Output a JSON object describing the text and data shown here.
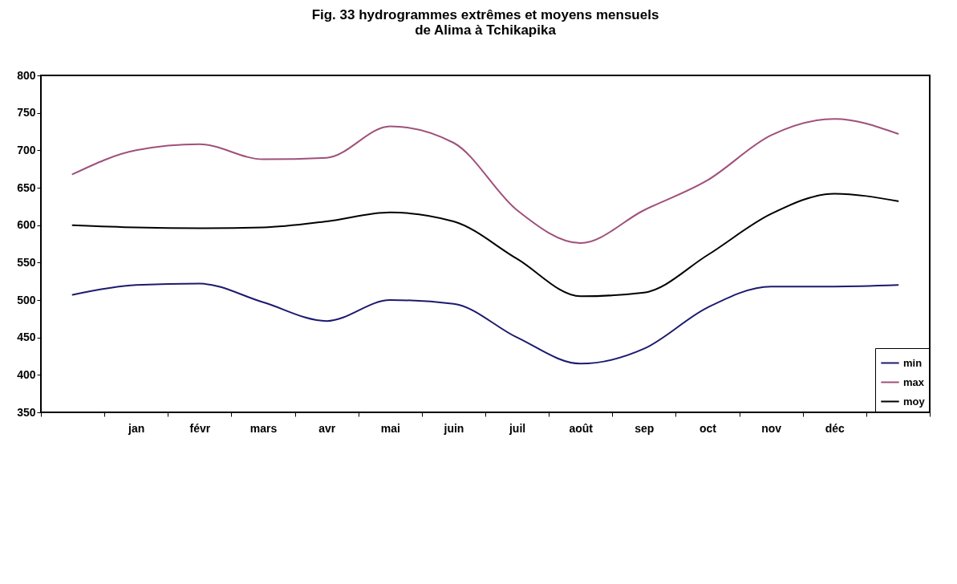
{
  "chart_data": {
    "type": "line",
    "title": "Fig. 33 hydrogrammes extrêmes et moyens mensuels\nde Alima à Tchikapika",
    "categories": [
      null,
      "jan",
      "févr",
      "mars",
      "avr",
      "mai",
      "juin",
      "juil",
      "août",
      "sep",
      "oct",
      "nov",
      "déc",
      null
    ],
    "series": [
      {
        "name": "min",
        "color": "#1c1a6e",
        "values": [
          507,
          520,
          522,
          497,
          472,
          500,
          495,
          450,
          415,
          435,
          490,
          518,
          518,
          520
        ]
      },
      {
        "name": "max",
        "color": "#a0507a",
        "values": [
          668,
          700,
          708,
          688,
          690,
          732,
          710,
          620,
          576,
          620,
          660,
          720,
          742,
          722
        ]
      },
      {
        "name": "moy",
        "color": "#000000",
        "values": [
          600,
          597,
          596,
          597,
          605,
          617,
          605,
          555,
          505,
          510,
          560,
          615,
          642,
          632
        ]
      }
    ],
    "ylim": [
      350,
      800
    ],
    "yticks": [
      350,
      400,
      450,
      500,
      550,
      600,
      650,
      700,
      750,
      800
    ],
    "legend": "bottom right",
    "grid": false,
    "marker": "none",
    "line_style": "solid"
  }
}
